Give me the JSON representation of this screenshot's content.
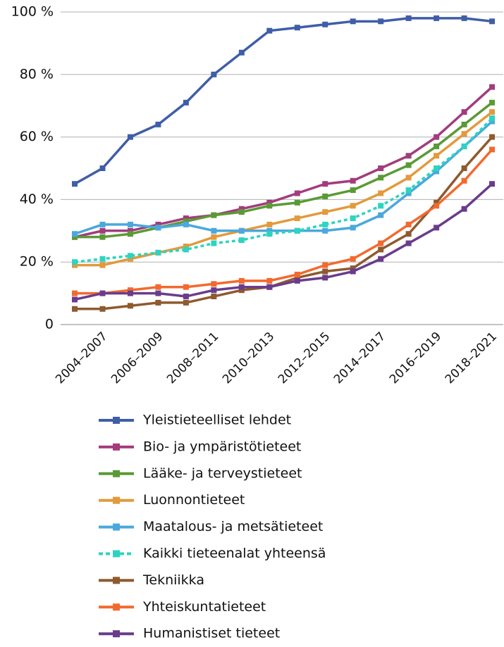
{
  "chart_data": {
    "type": "line",
    "categories": [
      null,
      "2004–2007",
      null,
      "2006–2009",
      null,
      "2008–2011",
      null,
      "2010–2013",
      null,
      "2012–2015",
      null,
      "2014–2017",
      null,
      "2016–2019",
      null,
      "2018–2021"
    ],
    "ylim": [
      0,
      100
    ],
    "yticks": [
      0,
      {
        "value": 20,
        "label": "20 %"
      },
      {
        "value": 40,
        "label": "40 %"
      },
      {
        "value": 60,
        "label": "60 %"
      },
      {
        "value": 80,
        "label": "80 %"
      },
      {
        "value": 100,
        "label": "100 %"
      }
    ],
    "grid": true,
    "series": [
      {
        "name": "Yleistieteelliset lehdet",
        "color": "#3f5ea8",
        "values": [
          45,
          50,
          60,
          64,
          71,
          80,
          87,
          94,
          95,
          96,
          97,
          97,
          98,
          98,
          98,
          97
        ]
      },
      {
        "name": "Bio- ja ympäristötieteet",
        "color": "#a23c7d",
        "values": [
          28,
          30,
          30,
          32,
          34,
          35,
          37,
          39,
          42,
          45,
          46,
          50,
          54,
          60,
          68,
          76
        ]
      },
      {
        "name": "Lääke- ja terveystieteet",
        "color": "#5a9a35",
        "values": [
          28,
          28,
          29,
          31,
          33,
          35,
          36,
          38,
          39,
          41,
          43,
          47,
          51,
          57,
          64,
          71
        ]
      },
      {
        "name": "Luonnontieteet",
        "color": "#e29a3c",
        "values": [
          19,
          19,
          21,
          23,
          25,
          28,
          30,
          32,
          34,
          36,
          38,
          42,
          47,
          54,
          61,
          68
        ]
      },
      {
        "name": "Maatalous- ja metsätieteet",
        "color": "#4aa8dc",
        "values": [
          29,
          32,
          32,
          31,
          32,
          30,
          30,
          30,
          30,
          30,
          31,
          35,
          42,
          49,
          57,
          65
        ]
      },
      {
        "name": "Kaikki tieteenalat yhteensä",
        "color": "#2dd4c0",
        "dashed": true,
        "values": [
          20,
          21,
          22,
          23,
          24,
          26,
          27,
          29,
          30,
          32,
          34,
          38,
          43,
          50,
          57,
          66
        ]
      },
      {
        "name": "Tekniikka",
        "color": "#8e5a2e",
        "values": [
          5,
          5,
          6,
          7,
          7,
          9,
          11,
          12,
          15,
          17,
          18,
          24,
          29,
          39,
          50,
          60
        ]
      },
      {
        "name": "Yhteiskuntatieteet",
        "color": "#f26a2e",
        "values": [
          10,
          10,
          11,
          12,
          12,
          13,
          14,
          14,
          16,
          19,
          21,
          26,
          32,
          38,
          46,
          56
        ]
      },
      {
        "name": "Humanistiset tieteet",
        "color": "#6a3c8c",
        "values": [
          8,
          10,
          10,
          10,
          9,
          11,
          12,
          12,
          14,
          15,
          17,
          21,
          26,
          31,
          37,
          45
        ]
      }
    ]
  }
}
